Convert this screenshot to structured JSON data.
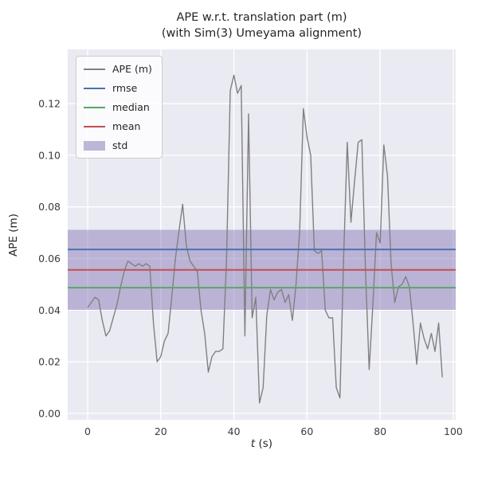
{
  "title": {
    "line1": "APE w.r.t. translation part (m)",
    "line2": "(with Sim(3) Umeyama alignment)"
  },
  "axis": {
    "x_var": "t",
    "x_unit": " (s)",
    "y_label": "APE (m)"
  },
  "colors": {
    "figure_bg": "#ffffff",
    "plot_bg": "#eaeaf2",
    "grid": "#ffffff",
    "ape_line": "#808080",
    "rmse": "#4c72b0",
    "median": "#55a868",
    "mean": "#c44e52",
    "std": "#8172b2",
    "tick_text": "#3b3b3b"
  },
  "legend": {
    "items": [
      {
        "label": "APE (m)",
        "type": "line",
        "color": "#808080"
      },
      {
        "label": "rmse",
        "type": "line",
        "color": "#4c72b0"
      },
      {
        "label": "median",
        "type": "line",
        "color": "#55a868"
      },
      {
        "label": "mean",
        "type": "line",
        "color": "#c44e52"
      },
      {
        "label": "std",
        "type": "patch",
        "color": "#8172b2",
        "alpha": 0.5
      }
    ]
  },
  "chart_data": {
    "type": "line",
    "title": "APE w.r.t. translation part (m)\n(with Sim(3) Umeyama alignment)",
    "xlabel": "t (s)",
    "ylabel": "APE (m)",
    "xlim": [
      -5.45,
      100.66
    ],
    "ylim": [
      -0.0025,
      0.141
    ],
    "xticks": [
      0,
      20,
      40,
      60,
      80,
      100
    ],
    "yticks": [
      0.0,
      0.02,
      0.04,
      0.06,
      0.08,
      0.1,
      0.12
    ],
    "grid": true,
    "legend_position": "upper left",
    "stats": {
      "rmse": 0.0635,
      "mean": 0.0556,
      "median": 0.0487,
      "std": 0.0155
    },
    "stat_lines": [
      {
        "name": "rmse",
        "value": 0.0635,
        "color": "#4c72b0"
      },
      {
        "name": "median",
        "value": 0.0487,
        "color": "#55a868"
      },
      {
        "name": "mean",
        "value": 0.0556,
        "color": "#c44e52"
      }
    ],
    "std_band": {
      "name": "std",
      "lower": 0.0401,
      "upper": 0.0711,
      "color": "#8172b2",
      "alpha": 0.45
    },
    "ape": {
      "name": "APE (m)",
      "color": "#808080",
      "t": [
        0,
        1,
        2,
        3,
        4,
        5,
        6,
        7,
        8,
        9,
        10,
        11,
        12,
        13,
        14,
        15,
        16,
        17,
        18,
        19,
        20,
        21,
        22,
        23,
        24,
        25,
        26,
        27,
        28,
        29,
        30,
        31,
        32,
        33,
        34,
        35,
        36,
        37,
        38,
        39,
        40,
        41,
        42,
        43,
        44,
        45,
        46,
        47,
        48,
        49,
        50,
        51,
        52,
        53,
        54,
        55,
        56,
        57,
        58,
        59,
        60,
        61,
        62,
        63,
        64,
        65,
        66,
        67,
        68,
        69,
        70,
        71,
        72,
        73,
        74,
        75,
        76,
        77,
        78,
        79,
        80,
        81,
        82,
        83,
        84,
        85,
        86,
        87,
        88,
        89,
        90,
        91,
        92,
        93,
        94,
        95,
        96,
        97
      ],
      "values": [
        0.041,
        0.043,
        0.045,
        0.044,
        0.036,
        0.03,
        0.032,
        0.037,
        0.042,
        0.049,
        0.055,
        0.059,
        0.058,
        0.057,
        0.058,
        0.057,
        0.058,
        0.057,
        0.035,
        0.02,
        0.022,
        0.028,
        0.031,
        0.045,
        0.06,
        0.071,
        0.081,
        0.065,
        0.059,
        0.057,
        0.055,
        0.04,
        0.031,
        0.016,
        0.022,
        0.024,
        0.024,
        0.025,
        0.06,
        0.125,
        0.131,
        0.124,
        0.127,
        0.03,
        0.116,
        0.037,
        0.045,
        0.004,
        0.01,
        0.038,
        0.048,
        0.044,
        0.047,
        0.048,
        0.043,
        0.046,
        0.036,
        0.05,
        0.071,
        0.118,
        0.107,
        0.1,
        0.063,
        0.062,
        0.063,
        0.04,
        0.037,
        0.037,
        0.01,
        0.006,
        0.06,
        0.105,
        0.074,
        0.09,
        0.105,
        0.106,
        0.055,
        0.017,
        0.042,
        0.07,
        0.066,
        0.104,
        0.092,
        0.058,
        0.043,
        0.049,
        0.05,
        0.053,
        0.049,
        0.035,
        0.019,
        0.035,
        0.029,
        0.025,
        0.031,
        0.024,
        0.035,
        0.014
      ]
    }
  }
}
